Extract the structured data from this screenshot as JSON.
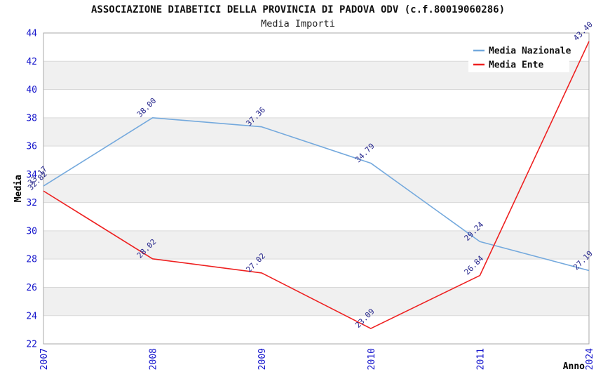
{
  "chart_data": {
    "type": "line",
    "title": "ASSOCIAZIONE DIABETICI DELLA PROVINCIA DI PADOVA ODV (c.f.80019060286)",
    "subtitle": "Media Importi",
    "xlabel": "Anno",
    "ylabel": "Media",
    "ylim": [
      22,
      44
    ],
    "ytick_step": 2,
    "yticks": [
      22,
      24,
      26,
      28,
      30,
      32,
      34,
      36,
      38,
      40,
      42,
      44
    ],
    "grid": true,
    "legend_position": "top-right",
    "categories": [
      "2007",
      "2008",
      "2009",
      "2010",
      "2011",
      "2024"
    ],
    "series": [
      {
        "name": "Media Nazionale",
        "color": "#74a9dd",
        "values": [
          33.17,
          38.0,
          37.36,
          34.79,
          29.24,
          27.19
        ],
        "labels": [
          "33.17",
          "38.00",
          "37.36",
          "34.79",
          "29.24",
          "27.19"
        ]
      },
      {
        "name": "Media Ente",
        "color": "#ee2020",
        "values": [
          32.82,
          28.02,
          27.02,
          23.09,
          26.84,
          43.4
        ],
        "labels": [
          "32.82",
          "28.02",
          "27.02",
          "23.09",
          "26.84",
          "43.40"
        ]
      }
    ],
    "colors": {
      "tick_label": "#1515cc",
      "data_label": "#26268c",
      "band": "#f0f0f0",
      "grid_line": "#d9d9d9",
      "plot_border": "#a8a8a8",
      "axis_label": "#000000",
      "legend_text": "#111111",
      "legend_bg": "#ffffff"
    }
  }
}
